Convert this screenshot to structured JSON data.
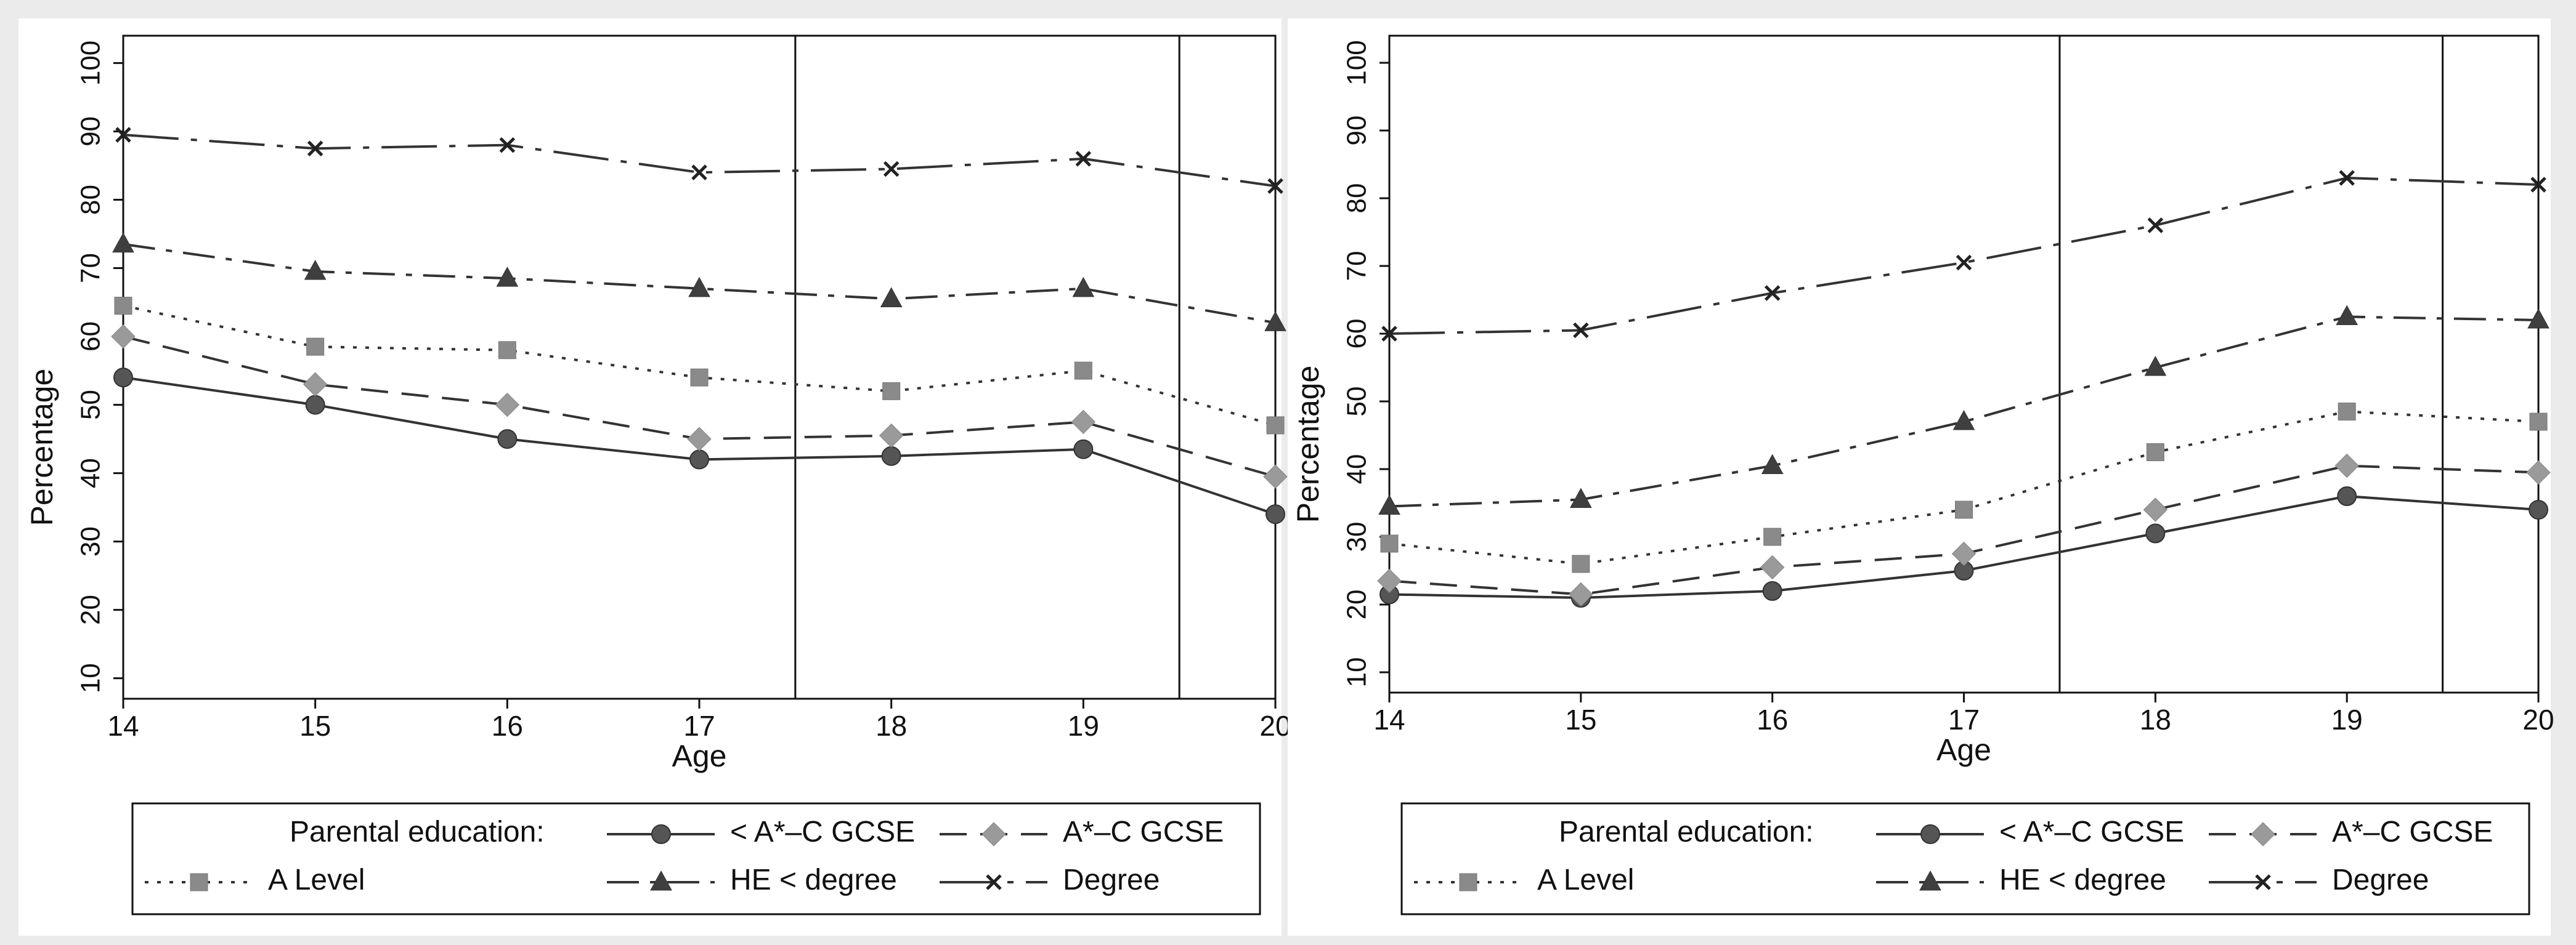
{
  "chart_data": [
    {
      "type": "line",
      "title": "",
      "xlabel": "Age",
      "ylabel": "Percentage",
      "x": [
        14,
        15,
        16,
        17,
        18,
        19,
        20
      ],
      "xlim": [
        14,
        20
      ],
      "ylim": [
        7,
        104
      ],
      "yticks": [
        10,
        20,
        30,
        40,
        50,
        60,
        70,
        80,
        90,
        100
      ],
      "vlines": [
        17.5,
        19.5
      ],
      "legend_title": "Parental education:",
      "legend_position": "bottom",
      "series": [
        {
          "name": "< A*–C GCSE",
          "marker": "circle",
          "dash": "solid",
          "values": [
            54,
            50,
            45,
            42,
            42.5,
            43.5,
            34
          ]
        },
        {
          "name": "A*–C GCSE",
          "marker": "diamond",
          "dash": "dash",
          "values": [
            60,
            53,
            50,
            45,
            45.5,
            47.5,
            39.5
          ]
        },
        {
          "name": "A Level",
          "marker": "square",
          "dash": "dot",
          "values": [
            64.5,
            58.5,
            58,
            54,
            52,
            55,
            47
          ]
        },
        {
          "name": "HE < degree",
          "marker": "triangle",
          "dash": "dashdot",
          "values": [
            73.5,
            69.5,
            68.5,
            67,
            65.5,
            67,
            62
          ]
        },
        {
          "name": "Degree",
          "marker": "x",
          "dash": "longdashdot",
          "values": [
            89.5,
            87.5,
            88,
            84,
            84.5,
            86,
            82
          ]
        }
      ]
    },
    {
      "type": "line",
      "title": "",
      "xlabel": "Age",
      "ylabel": "Percentage",
      "x": [
        14,
        15,
        16,
        17,
        18,
        19,
        20
      ],
      "xlim": [
        14,
        20
      ],
      "ylim": [
        7,
        104
      ],
      "yticks": [
        10,
        20,
        30,
        40,
        50,
        60,
        70,
        80,
        90,
        100
      ],
      "vlines": [
        17.5,
        19.5
      ],
      "legend_title": "Parental education:",
      "legend_position": "bottom",
      "series": [
        {
          "name": "< A*–C GCSE",
          "marker": "circle",
          "dash": "solid",
          "values": [
            21.5,
            21,
            22,
            25,
            30.5,
            36,
            34
          ]
        },
        {
          "name": "A*–C GCSE",
          "marker": "diamond",
          "dash": "dash",
          "values": [
            23.5,
            21.5,
            25.5,
            27.5,
            34,
            40.5,
            39.5
          ]
        },
        {
          "name": "A Level",
          "marker": "square",
          "dash": "dot",
          "values": [
            29,
            26,
            30,
            34,
            42.5,
            48.5,
            47
          ]
        },
        {
          "name": "HE < degree",
          "marker": "triangle",
          "dash": "dashdot",
          "values": [
            34.5,
            35.5,
            40.5,
            47,
            55,
            62.5,
            62
          ]
        },
        {
          "name": "Degree",
          "marker": "x",
          "dash": "longdashdot",
          "values": [
            60,
            60.5,
            66,
            70.5,
            76,
            83,
            82
          ]
        }
      ]
    }
  ]
}
